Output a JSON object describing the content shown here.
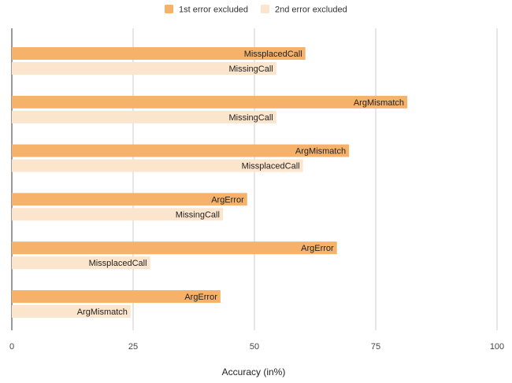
{
  "chart_data": {
    "type": "bar",
    "orientation": "horizontal",
    "xlabel": "Accuracy (in%)",
    "xlim": [
      0,
      100
    ],
    "xticks": [
      0,
      25,
      50,
      75,
      100
    ],
    "grid": true,
    "legend_position": "top",
    "series": [
      {
        "name": "1st error excluded",
        "color": "#f6b26b",
        "values": [
          60.5,
          81.5,
          69.5,
          48.5,
          67,
          43
        ],
        "labels": [
          "MissplacedCall",
          "ArgMismatch",
          "ArgMismatch",
          "ArgError",
          "ArgError",
          "ArgError"
        ]
      },
      {
        "name": "2nd error excluded",
        "color": "#fce5cd",
        "values": [
          54.5,
          54.5,
          60,
          43.5,
          28.5,
          24.5
        ],
        "labels": [
          "MissingCall",
          "MissingCall",
          "MissplacedCall",
          "MissingCall",
          "MissplacedCall",
          "ArgMismatch"
        ]
      }
    ]
  }
}
